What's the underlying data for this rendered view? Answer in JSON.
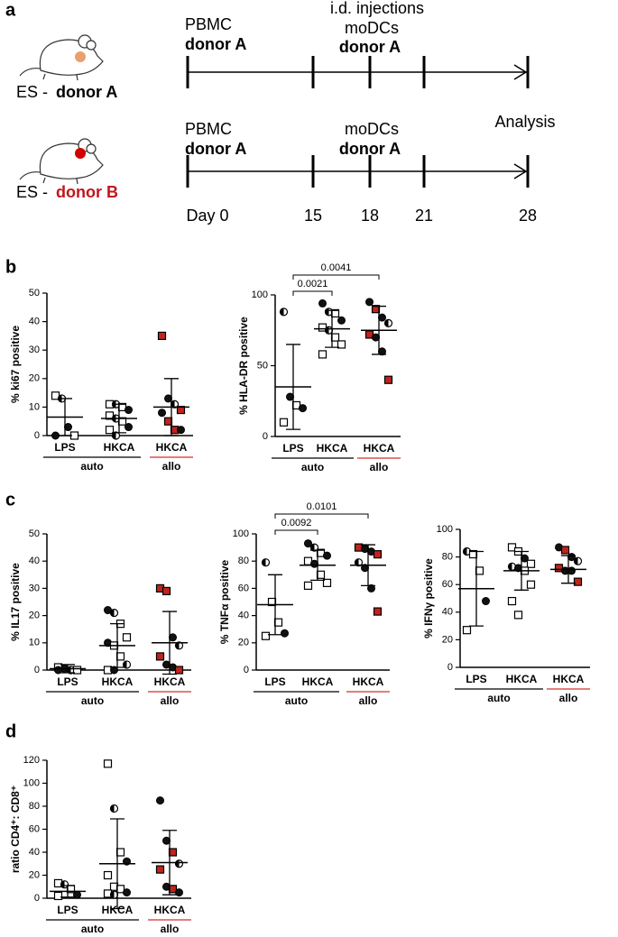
{
  "panels": [
    "a",
    "b",
    "c",
    "d"
  ],
  "timeline": {
    "rows": [
      {
        "prefix": "ES -",
        "donor": "donor A",
        "start": [
          "PBMC",
          "donor A"
        ],
        "injection": [
          "i.d. injections",
          "moDCs",
          "donor A"
        ]
      },
      {
        "prefix": "ES -",
        "donor": "donor B",
        "start": [
          "PBMC",
          "donor A"
        ],
        "injection": [
          "moDCs",
          "donor A"
        ],
        "end": "Analysis"
      }
    ],
    "days": [
      "Day 0",
      "15",
      "18",
      "21",
      "28"
    ]
  },
  "chart_data": [
    {
      "type": "dot",
      "y_label": "% ki67 positive",
      "ylim": [
        0,
        50
      ],
      "yticks": [
        0,
        10,
        20,
        30,
        40,
        50
      ],
      "categories": [
        "LPS",
        "HKCA",
        "HKCA"
      ],
      "groups": [
        {
          "name": "auto",
          "color": "#000000",
          "size": 2
        },
        {
          "name": "allo",
          "color": "#d0312d",
          "size": 1
        }
      ],
      "points": [
        [
          14,
          13,
          3,
          0,
          0
        ],
        [
          11,
          11,
          10,
          9,
          7,
          6,
          5,
          3,
          2,
          0
        ],
        [
          35,
          13,
          11,
          9,
          8,
          5,
          2,
          2
        ]
      ],
      "markers": [
        [
          "open",
          "half",
          "circle",
          "open",
          "circle"
        ],
        [
          "open",
          "half",
          "open",
          "circle",
          "open",
          "half",
          "open",
          "circle",
          "open",
          "half"
        ],
        [
          "red",
          "circle",
          "half",
          "red",
          "circle",
          "red",
          "red",
          "circle"
        ]
      ],
      "mean": [
        6.5,
        6,
        10
      ],
      "sd": [
        6.5,
        5,
        10
      ],
      "comparisons": []
    },
    {
      "type": "dot",
      "y_label": "% HLA-DR positive",
      "ylim": [
        0,
        100
      ],
      "yticks": [
        0,
        50,
        100
      ],
      "categories": [
        "LPS",
        "HKCA",
        "HKCA"
      ],
      "groups": [
        {
          "name": "auto",
          "color": "#000000",
          "size": 2
        },
        {
          "name": "allo",
          "color": "#d0312d",
          "size": 1
        }
      ],
      "points": [
        [
          88,
          28,
          22,
          20,
          10
        ],
        [
          94,
          88,
          87,
          82,
          77,
          75,
          70,
          65,
          58
        ],
        [
          95,
          90,
          84,
          80,
          72,
          70,
          60,
          40
        ]
      ],
      "markers": [
        [
          "half",
          "circle",
          "open",
          "circle",
          "open"
        ],
        [
          "circle",
          "half",
          "open",
          "circle",
          "open",
          "half",
          "open",
          "open",
          "open"
        ],
        [
          "circle",
          "red",
          "circle",
          "half",
          "red",
          "circle",
          "circle",
          "red"
        ]
      ],
      "mean": [
        35,
        76,
        75
      ],
      "sd": [
        30,
        13,
        17
      ],
      "comparisons": [
        {
          "label": 0.0021,
          "pair": [
            0,
            1
          ]
        },
        {
          "label": 0.0041,
          "pair": [
            0,
            2
          ]
        }
      ]
    },
    {
      "type": "dot",
      "y_label": "% IL17 positive",
      "ylim": [
        0,
        50
      ],
      "yticks": [
        0,
        10,
        20,
        30,
        40,
        50
      ],
      "categories": [
        "LPS",
        "HKCA",
        "HKCA"
      ],
      "groups": [
        {
          "name": "auto",
          "color": "#000000",
          "size": 2
        },
        {
          "name": "allo",
          "color": "#d0312d",
          "size": 1
        }
      ],
      "points": [
        [
          1,
          0.5,
          0,
          0,
          0
        ],
        [
          22,
          21,
          17,
          12,
          10,
          9,
          5,
          2,
          0,
          0
        ],
        [
          30,
          29,
          12,
          9,
          5,
          2,
          1,
          0
        ]
      ],
      "markers": [
        [
          "open",
          "circle",
          "half",
          "open",
          "circle"
        ],
        [
          "circle",
          "half",
          "open",
          "open",
          "circle",
          "open",
          "open",
          "half",
          "open",
          "circle"
        ],
        [
          "red",
          "red",
          "circle",
          "half",
          "red",
          "circle",
          "circle",
          "red"
        ]
      ],
      "mean": [
        0.5,
        9,
        10
      ],
      "sd": [
        1.5,
        8,
        11.5
      ],
      "comparisons": []
    },
    {
      "type": "dot",
      "y_label": "% TNFα positive",
      "ylim": [
        0,
        100
      ],
      "yticks": [
        0,
        20,
        40,
        60,
        80,
        100
      ],
      "categories": [
        "LPS",
        "HKCA",
        "HKCA"
      ],
      "groups": [
        {
          "name": "auto",
          "color": "#000000",
          "size": 2
        },
        {
          "name": "allo",
          "color": "#d0312d",
          "size": 1
        }
      ],
      "points": [
        [
          79,
          50,
          35,
          27,
          25
        ],
        [
          93,
          90,
          86,
          84,
          80,
          78,
          70,
          64,
          62
        ],
        [
          90,
          89,
          87,
          85,
          79,
          75,
          60,
          43
        ]
      ],
      "markers": [
        [
          "half",
          "open",
          "open",
          "circle",
          "open"
        ],
        [
          "circle",
          "half",
          "open",
          "circle",
          "open",
          "circle",
          "open",
          "open",
          "open"
        ],
        [
          "red",
          "circle",
          "circle",
          "red",
          "half",
          "circle",
          "circle",
          "red"
        ]
      ],
      "mean": [
        48,
        77,
        77
      ],
      "sd": [
        22,
        11,
        15
      ],
      "comparisons": [
        {
          "label": 0.0092,
          "pair": [
            0,
            1
          ]
        },
        {
          "label": 0.0101,
          "pair": [
            0,
            2
          ]
        }
      ]
    },
    {
      "type": "dot",
      "y_label": "% IFNγ positive",
      "ylim": [
        0,
        100
      ],
      "yticks": [
        0,
        20,
        40,
        60,
        80,
        100
      ],
      "categories": [
        "LPS",
        "HKCA",
        "HKCA"
      ],
      "groups": [
        {
          "name": "auto",
          "color": "#000000",
          "size": 2
        },
        {
          "name": "allo",
          "color": "#d0312d",
          "size": 1
        }
      ],
      "points": [
        [
          84,
          82,
          70,
          48,
          27
        ],
        [
          87,
          84,
          79,
          75,
          73,
          72,
          70,
          60,
          48,
          38
        ],
        [
          87,
          85,
          80,
          77,
          72,
          70,
          70,
          62
        ]
      ],
      "markers": [
        [
          "half",
          "open",
          "open",
          "circle",
          "open"
        ],
        [
          "open",
          "open",
          "circle",
          "open",
          "half",
          "circle",
          "open",
          "open",
          "open",
          "open"
        ],
        [
          "circle",
          "red",
          "circle",
          "half",
          "red",
          "circle",
          "circle",
          "red"
        ]
      ],
      "mean": [
        57,
        70,
        71
      ],
      "sd": [
        27,
        14,
        10
      ],
      "comparisons": []
    },
    {
      "type": "dot",
      "y_label": "ratio CD4⁺: CD8⁺",
      "ylim": [
        0,
        120
      ],
      "yticks": [
        0,
        20,
        40,
        60,
        80,
        100,
        120
      ],
      "categories": [
        "LPS",
        "HKCA",
        "HKCA"
      ],
      "groups": [
        {
          "name": "auto",
          "color": "#000000",
          "size": 2
        },
        {
          "name": "allo",
          "color": "#d0312d",
          "size": 1
        }
      ],
      "points": [
        [
          13,
          12,
          8,
          3,
          2
        ],
        [
          117,
          78,
          40,
          32,
          20,
          10,
          8,
          5,
          4,
          3
        ],
        [
          85,
          50,
          40,
          30,
          25,
          10,
          8,
          5
        ]
      ],
      "markers": [
        [
          "open",
          "half",
          "open",
          "circle",
          "open"
        ],
        [
          "open",
          "half",
          "open",
          "circle",
          "open",
          "open",
          "open",
          "circle",
          "open",
          "half"
        ],
        [
          "circle",
          "circle",
          "red",
          "half",
          "red",
          "circle",
          "red",
          "circle"
        ]
      ],
      "mean": [
        6,
        30,
        31
      ],
      "sd": [
        5,
        39,
        28
      ],
      "comparisons": []
    }
  ]
}
